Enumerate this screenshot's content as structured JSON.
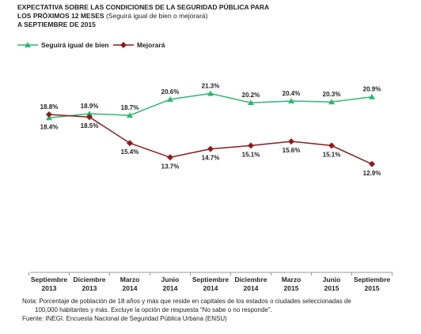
{
  "chart_data": {
    "type": "line",
    "title": [
      "EXPECTATIVA SOBRE LAS CONDICIONES DE LA SEGURIDAD PÚBLICA PARA",
      "LOS PRÓXIMOS 12 MESES",
      "A SEPTIEMBRE DE 2015"
    ],
    "subtitle": "(Seguirá igual de bien o mejorará)",
    "categories": [
      "Septiembre 2013",
      "Diciembre 2013",
      "Marzo 2014",
      "Junio 2014",
      "Septiembre 2014",
      "Diciembre 2014",
      "Marzo 2015",
      "Junio 2015",
      "Septiembre 2015"
    ],
    "series": [
      {
        "name": "Seguirá igual de bien",
        "color": "#2eb872",
        "values": [
          18.4,
          18.9,
          18.7,
          20.6,
          21.3,
          20.2,
          20.4,
          20.3,
          20.9
        ],
        "value_labels": [
          "18.4%",
          "18.9%",
          "18.7%",
          "20.6%",
          "21.3%",
          "20.2%",
          "20.4%",
          "20.3%",
          "20.9%"
        ]
      },
      {
        "name": "Mejorará",
        "color": "#8b1c1c",
        "values": [
          18.8,
          18.5,
          15.4,
          13.7,
          14.7,
          15.1,
          15.6,
          15.1,
          12.9
        ],
        "value_labels": [
          "18.8%",
          "18.5%",
          "15.4%",
          "13.7%",
          "14.7%",
          "15.1%",
          "15.6%",
          "15.1%",
          "12.9%"
        ]
      }
    ],
    "ylim": [
      0,
      22
    ],
    "notes": [
      "Nota: Porcentaje de población de 18 años y más que reside en capitales de los estados o ciudades seleccionadas de",
      "100,000 habitantes y más. Excluye la opción de respuesta “No sabe o no responde”.",
      "Fuente: INEGI. Encuesta Nacional de Seguridad Pública Urbana (ENSU)"
    ]
  }
}
